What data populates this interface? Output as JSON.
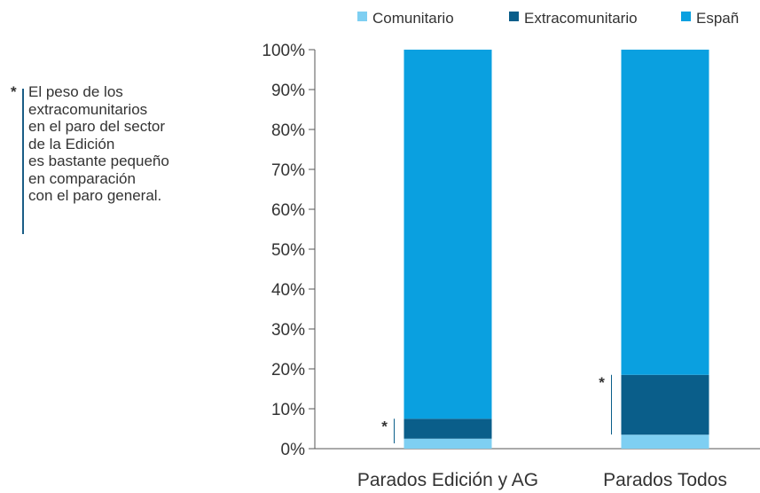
{
  "note": {
    "marker": "*",
    "text": "El peso de los\nextracomunitarios\nen el paro del sector\nde la Edición\nes bastante pequeño\nen comparación\ncon el paro general."
  },
  "chart_data": {
    "type": "bar",
    "stacked": true,
    "categories": [
      "Parados Edición y AG",
      "Parados Todos"
    ],
    "series": [
      {
        "name": "Comunitario",
        "values": [
          2.5,
          3.5
        ],
        "color": "#7ecff2"
      },
      {
        "name": "Extracomunitario",
        "values": [
          5.0,
          15.0
        ],
        "color": "#0a5e8a"
      },
      {
        "name": "Español",
        "values": [
          92.5,
          81.5
        ],
        "color": "#0aa0e0"
      }
    ],
    "legend_labels": [
      "Comunitario",
      "Extracomunitario",
      "Españ"
    ],
    "yticks": [
      "0%",
      "10%",
      "20%",
      "30%",
      "40%",
      "50%",
      "60%",
      "70%",
      "80%",
      "90%",
      "100%"
    ],
    "ylim": [
      0,
      100
    ],
    "legend_position": "top",
    "grid": false,
    "annotation_marker": "*",
    "bar_annotations": [
      {
        "category": "Parados Edición y AG",
        "series": "Extracomunitario"
      },
      {
        "category": "Parados Todos",
        "series": "Extracomunitario"
      }
    ]
  }
}
